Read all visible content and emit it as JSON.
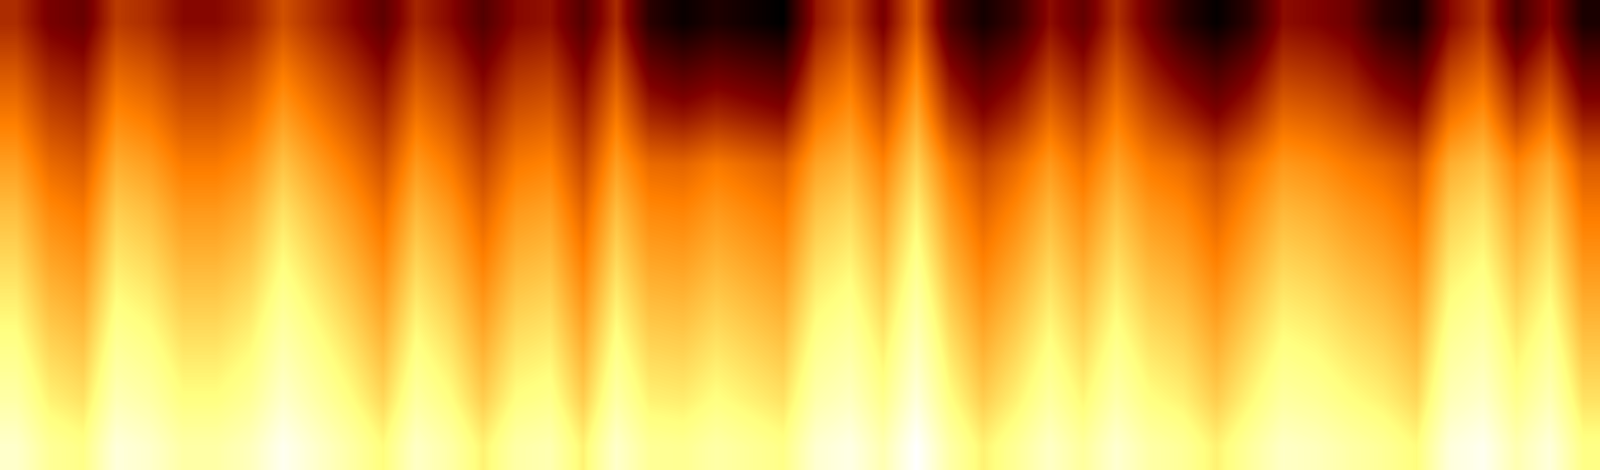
{
  "chart_data": {
    "type": "heatmap",
    "color": "afmhot",
    "tick_labels": false,
    "cells": [
      [
        45,
        35,
        32,
        48,
        45,
        38,
        38,
        42,
        52,
        45,
        38,
        30,
        44,
        38,
        28,
        38,
        40,
        28,
        45,
        20,
        14,
        18,
        15,
        12,
        41,
        50,
        35,
        55,
        26,
        16,
        23,
        39,
        31,
        46,
        33,
        20,
        13,
        21,
        39,
        37,
        33,
        20,
        15,
        38,
        47,
        25,
        38,
        17
      ],
      [
        53,
        43,
        40,
        56,
        53,
        46,
        46,
        50,
        60,
        53,
        46,
        38,
        52,
        46,
        36,
        46,
        48,
        36,
        53,
        33,
        28,
        32,
        29,
        26,
        50,
        58,
        44,
        63,
        38,
        28,
        35,
        48,
        40,
        54,
        42,
        33,
        26,
        34,
        48,
        46,
        42,
        33,
        28,
        49,
        56,
        38,
        49,
        30
      ],
      [
        60,
        50,
        47,
        63,
        60,
        53,
        53,
        57,
        67,
        60,
        53,
        45,
        59,
        53,
        43,
        53,
        55,
        43,
        60,
        44,
        41,
        45,
        42,
        39,
        59,
        65,
        53,
        70,
        48,
        38,
        45,
        57,
        49,
        61,
        51,
        44,
        37,
        45,
        57,
        55,
        51,
        44,
        39,
        59,
        65,
        49,
        59,
        41
      ],
      [
        67,
        57,
        54,
        70,
        67,
        60,
        60,
        64,
        74,
        67,
        60,
        52,
        66,
        60,
        50,
        60,
        62,
        50,
        67,
        57,
        56,
        60,
        57,
        54,
        68,
        72,
        62,
        77,
        60,
        50,
        57,
        66,
        58,
        68,
        60,
        57,
        50,
        58,
        66,
        64,
        60,
        57,
        52,
        70,
        74,
        62,
        70,
        54
      ],
      [
        73,
        63,
        60,
        76,
        73,
        66,
        66,
        70,
        80,
        73,
        66,
        58,
        72,
        66,
        56,
        66,
        68,
        56,
        73,
        63,
        62,
        66,
        63,
        60,
        74,
        78,
        68,
        83,
        66,
        56,
        63,
        72,
        64,
        74,
        66,
        63,
        56,
        64,
        72,
        70,
        66,
        63,
        58,
        76,
        80,
        68,
        76,
        60
      ],
      [
        78,
        68,
        65,
        81,
        78,
        71,
        71,
        75,
        85,
        78,
        71,
        63,
        77,
        71,
        61,
        71,
        73,
        61,
        78,
        68,
        67,
        71,
        68,
        65,
        79,
        83,
        73,
        88,
        71,
        61,
        68,
        77,
        69,
        79,
        71,
        68,
        61,
        69,
        77,
        75,
        71,
        68,
        63,
        81,
        85,
        73,
        81,
        65
      ],
      [
        83,
        73,
        70,
        86,
        83,
        76,
        76,
        80,
        90,
        83,
        76,
        68,
        82,
        76,
        66,
        76,
        78,
        66,
        83,
        73,
        72,
        76,
        73,
        70,
        84,
        88,
        78,
        93,
        76,
        66,
        73,
        82,
        74,
        84,
        76,
        73,
        66,
        74,
        82,
        80,
        76,
        73,
        68,
        86,
        90,
        78,
        86,
        70
      ],
      [
        88,
        78,
        75,
        91,
        88,
        81,
        81,
        85,
        95,
        88,
        81,
        73,
        87,
        81,
        71,
        81,
        83,
        71,
        88,
        78,
        77,
        81,
        78,
        75,
        89,
        93,
        83,
        98,
        81,
        71,
        78,
        87,
        79,
        89,
        81,
        78,
        71,
        79,
        87,
        85,
        81,
        78,
        73,
        91,
        95,
        83,
        91,
        75
      ],
      [
        93,
        83,
        80,
        96,
        93,
        86,
        86,
        90,
        100,
        93,
        86,
        78,
        92,
        86,
        76,
        86,
        88,
        76,
        93,
        83,
        82,
        86,
        83,
        80,
        94,
        98,
        88,
        103,
        86,
        76,
        83,
        92,
        84,
        94,
        86,
        83,
        76,
        84,
        92,
        90,
        86,
        83,
        78,
        96,
        100,
        88,
        96,
        80
      ],
      [
        100,
        90,
        87,
        103,
        100,
        93,
        93,
        97,
        107,
        100,
        93,
        85,
        99,
        93,
        83,
        93,
        95,
        83,
        100,
        90,
        89,
        93,
        90,
        87,
        101,
        105,
        95,
        110,
        93,
        83,
        90,
        99,
        91,
        101,
        93,
        90,
        83,
        91,
        99,
        97,
        93,
        90,
        85,
        103,
        107,
        95,
        103,
        87
      ]
    ]
  }
}
